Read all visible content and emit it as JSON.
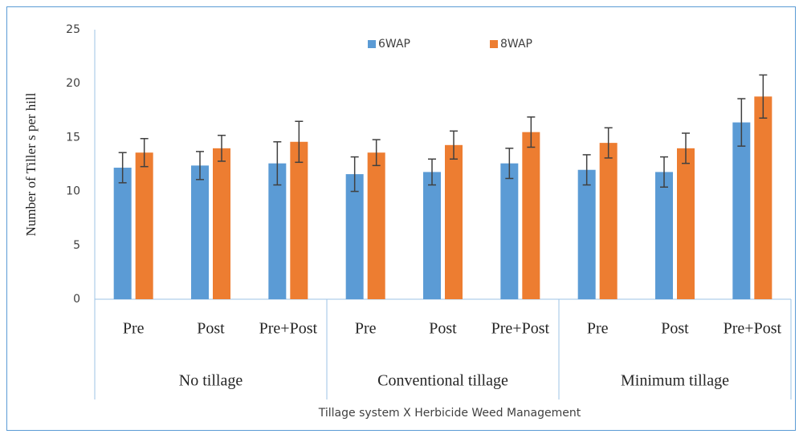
{
  "chart_data": {
    "type": "bar",
    "y_label": "Number of Tiller s per hill",
    "x_label": "Tillage system X Herbicide Weed Management",
    "groups": [
      {
        "name": "No tillage",
        "categories": [
          "Pre",
          "Post",
          "Pre+Post"
        ]
      },
      {
        "name": "Conventional tillage",
        "categories": [
          "Pre",
          "Post",
          "Pre+Post"
        ]
      },
      {
        "name": "Minimum tillage",
        "categories": [
          "Pre",
          "Post",
          "Pre+Post"
        ]
      }
    ],
    "series": [
      {
        "name": "6WAP",
        "color": "#5b9bd5",
        "values": [
          12.2,
          12.4,
          12.6,
          11.6,
          11.8,
          12.6,
          12.0,
          11.8,
          16.4
        ],
        "errors": [
          1.4,
          1.3,
          2.0,
          1.6,
          1.2,
          1.4,
          1.4,
          1.4,
          2.2
        ]
      },
      {
        "name": "8WAP",
        "color": "#ed7d31",
        "values": [
          13.6,
          14.0,
          14.6,
          13.6,
          14.3,
          15.5,
          14.5,
          14.0,
          18.8
        ],
        "errors": [
          1.3,
          1.2,
          1.9,
          1.2,
          1.3,
          1.4,
          1.4,
          1.4,
          2.0
        ]
      }
    ],
    "ylim": [
      0,
      25
    ],
    "yticks": [
      0,
      5,
      10,
      15,
      20,
      25
    ],
    "grid": false,
    "legend": "top"
  }
}
